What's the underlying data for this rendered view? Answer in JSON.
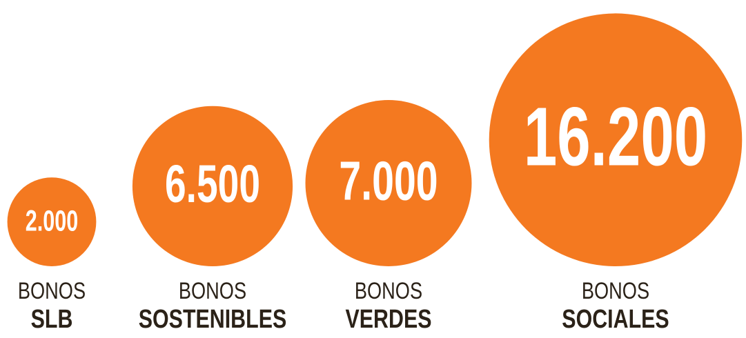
{
  "chart_data": {
    "type": "bubble",
    "category_prefix": "BONOS",
    "categories": [
      "SLB",
      "SOSTENIBLES",
      "VERDES",
      "SOCIALES"
    ],
    "values": [
      2000,
      6500,
      7000,
      16200
    ],
    "value_labels": [
      "2.000",
      "6.500",
      "7.000",
      "16.200"
    ],
    "color": "#f47920"
  }
}
